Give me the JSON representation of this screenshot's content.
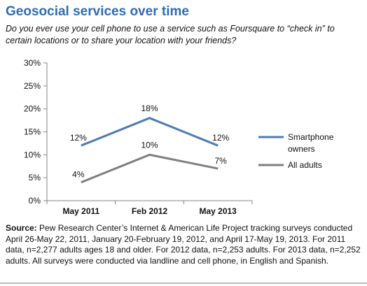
{
  "title": "Geosocial services over time",
  "subtitle": "Do you ever use your cell phone to use a service such as Foursquare to “check in” to certain locations or to share your location with your friends?",
  "source_label": "Source:",
  "source_text": " Pew Research Center’s Internet & American Life Project tracking surveys conducted April 26-May 22, 2011, January 20-February 19, 2012, and April 17-May 19, 2013. For 2011 data, n=2,277 adults ages 18 and older. For 2012 data, n=2,253 adults. For 2013 data, n=2,252 adults. All surveys were conducted via landline and cell phone, in English and Spanish.",
  "chart_data": {
    "type": "line",
    "categories": [
      "May 2011",
      "Feb 2012",
      "May 2013"
    ],
    "ylim": [
      0,
      30
    ],
    "yticks": [
      0,
      5,
      10,
      15,
      20,
      25,
      30
    ],
    "ytick_labels": [
      "0%",
      "5%",
      "10%",
      "15%",
      "20%",
      "25%",
      "30%"
    ],
    "grid": false,
    "legend": "right",
    "series": [
      {
        "name": "Smartphone owners",
        "name_lines": [
          "Smartphone",
          "owners"
        ],
        "values": [
          12,
          18,
          12
        ],
        "labels": [
          "12%",
          "18%",
          "12%"
        ],
        "color": "#4f7cb3"
      },
      {
        "name": "All adults",
        "name_lines": [
          "All adults"
        ],
        "values": [
          4,
          10,
          7
        ],
        "labels": [
          "4%",
          "10%",
          "7%"
        ],
        "color": "#7f7f7f"
      }
    ]
  }
}
